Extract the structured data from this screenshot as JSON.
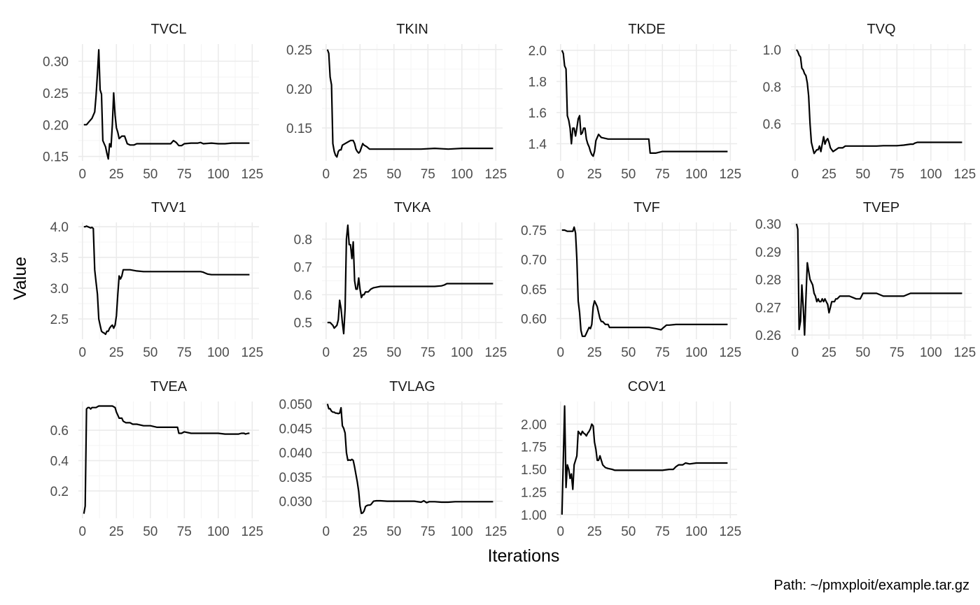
{
  "figure": {
    "ylabel": "Value",
    "xlabel": "Iterations",
    "caption": "Path: ~/pmxploit/example.tar.gz"
  },
  "chart_data": [
    {
      "type": "line",
      "title": "TVCL",
      "xlim": [
        -3,
        130
      ],
      "xticks": [
        0,
        25,
        50,
        75,
        100,
        125
      ],
      "ylim": [
        0.143,
        0.327
      ],
      "yticks": [
        0.15,
        0.2,
        0.25,
        0.3
      ],
      "ytick_labels": [
        "0.15",
        "0.20",
        "0.25",
        "0.30"
      ],
      "x": [
        1,
        3,
        5,
        7,
        9,
        10,
        11,
        12,
        13,
        14,
        15,
        17,
        18,
        19,
        20,
        21,
        22,
        23,
        24,
        25,
        26,
        27,
        29,
        31,
        33,
        35,
        38,
        40,
        45,
        50,
        55,
        60,
        65,
        67,
        69,
        71,
        73,
        75,
        80,
        85,
        87,
        89,
        95,
        100,
        105,
        110,
        115,
        120,
        123
      ],
      "y": [
        0.2,
        0.2,
        0.205,
        0.21,
        0.22,
        0.245,
        0.28,
        0.318,
        0.255,
        0.248,
        0.175,
        0.165,
        0.155,
        0.146,
        0.17,
        0.165,
        0.2,
        0.25,
        0.215,
        0.195,
        0.188,
        0.178,
        0.182,
        0.182,
        0.17,
        0.168,
        0.168,
        0.17,
        0.17,
        0.17,
        0.17,
        0.17,
        0.17,
        0.175,
        0.172,
        0.167,
        0.167,
        0.17,
        0.171,
        0.171,
        0.172,
        0.17,
        0.171,
        0.17,
        0.17,
        0.171,
        0.171,
        0.171,
        0.171
      ]
    },
    {
      "type": "line",
      "title": "TKIN",
      "xlim": [
        -3,
        130
      ],
      "xticks": [
        0,
        25,
        50,
        75,
        100,
        125
      ],
      "ylim": [
        0.108,
        0.257
      ],
      "yticks": [
        0.15,
        0.2,
        0.25
      ],
      "ytick_labels": [
        "0.15",
        "0.20",
        "0.25"
      ],
      "x": [
        1,
        2,
        3,
        4,
        5,
        6,
        7,
        8,
        9,
        10,
        11,
        12,
        14,
        16,
        18,
        20,
        21,
        22,
        23,
        24,
        25,
        27,
        28,
        30,
        32,
        35,
        40,
        50,
        60,
        70,
        80,
        90,
        100,
        110,
        120,
        123
      ],
      "y": [
        0.25,
        0.245,
        0.215,
        0.205,
        0.13,
        0.12,
        0.115,
        0.113,
        0.12,
        0.122,
        0.122,
        0.128,
        0.13,
        0.132,
        0.134,
        0.134,
        0.13,
        0.123,
        0.12,
        0.118,
        0.12,
        0.13,
        0.128,
        0.126,
        0.123,
        0.123,
        0.123,
        0.123,
        0.123,
        0.123,
        0.124,
        0.123,
        0.124,
        0.124,
        0.124,
        0.124
      ]
    },
    {
      "type": "line",
      "title": "TKDE",
      "xlim": [
        -3,
        130
      ],
      "xticks": [
        0,
        25,
        50,
        75,
        100,
        125
      ],
      "ylim": [
        1.29,
        2.04
      ],
      "yticks": [
        1.4,
        1.6,
        1.8,
        2.0
      ],
      "ytick_labels": [
        "1.4",
        "1.6",
        "1.8",
        "2.0"
      ],
      "x": [
        1,
        2,
        3,
        4,
        5,
        6,
        7,
        8,
        9,
        10,
        11,
        12,
        13,
        14,
        15,
        16,
        17,
        18,
        19,
        20,
        21,
        22,
        23,
        24,
        25,
        26,
        27,
        28,
        30,
        35,
        40,
        45,
        50,
        55,
        60,
        62,
        64,
        65,
        66,
        67,
        68,
        70,
        75,
        80,
        85,
        90,
        95,
        100,
        110,
        120,
        123
      ],
      "y": [
        2.0,
        1.98,
        1.9,
        1.88,
        1.58,
        1.55,
        1.5,
        1.4,
        1.5,
        1.5,
        1.45,
        1.5,
        1.56,
        1.58,
        1.46,
        1.47,
        1.5,
        1.5,
        1.43,
        1.4,
        1.38,
        1.35,
        1.33,
        1.32,
        1.35,
        1.42,
        1.44,
        1.46,
        1.44,
        1.43,
        1.43,
        1.43,
        1.43,
        1.43,
        1.43,
        1.43,
        1.43,
        1.43,
        1.34,
        1.34,
        1.34,
        1.34,
        1.35,
        1.35,
        1.35,
        1.35,
        1.35,
        1.35,
        1.35,
        1.35,
        1.35
      ]
    },
    {
      "type": "line",
      "title": "TVQ",
      "xlim": [
        -3,
        130
      ],
      "xticks": [
        0,
        25,
        50,
        75,
        100,
        125
      ],
      "ylim": [
        0.4,
        1.03
      ],
      "yticks": [
        0.6,
        0.8,
        1.0
      ],
      "ytick_labels": [
        "0.6",
        "0.8",
        "1.0"
      ],
      "x": [
        1,
        2,
        3,
        4,
        5,
        6,
        7,
        8,
        9,
        10,
        11,
        12,
        13,
        14,
        15,
        16,
        17,
        18,
        19,
        20,
        21,
        22,
        23,
        24,
        25,
        26,
        27,
        28,
        30,
        32,
        35,
        37,
        40,
        45,
        50,
        55,
        60,
        65,
        70,
        75,
        80,
        85,
        87,
        88,
        90,
        95,
        100,
        110,
        120,
        123
      ],
      "y": [
        1.0,
        0.99,
        0.97,
        0.96,
        0.9,
        0.89,
        0.87,
        0.86,
        0.82,
        0.75,
        0.6,
        0.5,
        0.47,
        0.44,
        0.45,
        0.46,
        0.46,
        0.48,
        0.45,
        0.49,
        0.53,
        0.49,
        0.51,
        0.52,
        0.5,
        0.47,
        0.46,
        0.45,
        0.46,
        0.47,
        0.47,
        0.48,
        0.48,
        0.48,
        0.48,
        0.48,
        0.48,
        0.482,
        0.482,
        0.482,
        0.485,
        0.49,
        0.49,
        0.495,
        0.5,
        0.5,
        0.5,
        0.5,
        0.5,
        0.5
      ]
    },
    {
      "type": "line",
      "title": "TVV1",
      "xlim": [
        -3,
        130
      ],
      "xticks": [
        0,
        25,
        50,
        75,
        100,
        125
      ],
      "ylim": [
        2.17,
        4.07
      ],
      "yticks": [
        2.5,
        3.0,
        3.5,
        4.0
      ],
      "ytick_labels": [
        "2.5",
        "3.0",
        "3.5",
        "4.0"
      ],
      "x": [
        1,
        2,
        3,
        4,
        5,
        6,
        7,
        8,
        9,
        10,
        11,
        12,
        13,
        14,
        15,
        16,
        17,
        18,
        19,
        20,
        21,
        22,
        23,
        24,
        25,
        26,
        27,
        28,
        29,
        30,
        31,
        32,
        35,
        40,
        45,
        50,
        60,
        70,
        80,
        87,
        89,
        90,
        92,
        95,
        100,
        110,
        120,
        123
      ],
      "y": [
        4.0,
        4.0,
        4.01,
        4.0,
        3.99,
        3.98,
        3.99,
        3.97,
        3.3,
        3.1,
        2.9,
        2.5,
        2.4,
        2.3,
        2.28,
        2.27,
        2.25,
        2.3,
        2.3,
        2.35,
        2.38,
        2.4,
        2.35,
        2.4,
        2.55,
        2.9,
        3.2,
        3.15,
        3.2,
        3.3,
        3.3,
        3.3,
        3.3,
        3.28,
        3.27,
        3.27,
        3.27,
        3.27,
        3.27,
        3.27,
        3.26,
        3.25,
        3.23,
        3.22,
        3.22,
        3.22,
        3.22,
        3.22
      ]
    },
    {
      "type": "line",
      "title": "TVKA",
      "xlim": [
        -3,
        130
      ],
      "xticks": [
        0,
        25,
        50,
        75,
        100,
        125
      ],
      "ylim": [
        0.44,
        0.86
      ],
      "yticks": [
        0.5,
        0.6,
        0.7,
        0.8
      ],
      "ytick_labels": [
        "0.5",
        "0.6",
        "0.7",
        "0.8"
      ],
      "x": [
        1,
        3,
        5,
        6,
        7,
        8,
        9,
        10,
        11,
        12,
        13,
        14,
        15,
        16,
        17,
        18,
        19,
        20,
        21,
        22,
        23,
        24,
        25,
        26,
        27,
        28,
        29,
        30,
        31,
        33,
        35,
        40,
        45,
        50,
        60,
        70,
        80,
        85,
        87,
        89,
        90,
        92,
        95,
        100,
        110,
        120,
        123
      ],
      "y": [
        0.5,
        0.5,
        0.49,
        0.48,
        0.485,
        0.49,
        0.51,
        0.58,
        0.55,
        0.5,
        0.46,
        0.55,
        0.8,
        0.85,
        0.78,
        0.78,
        0.73,
        0.79,
        0.65,
        0.62,
        0.62,
        0.66,
        0.62,
        0.59,
        0.6,
        0.6,
        0.61,
        0.61,
        0.61,
        0.62,
        0.625,
        0.63,
        0.63,
        0.63,
        0.63,
        0.63,
        0.63,
        0.632,
        0.635,
        0.64,
        0.64,
        0.64,
        0.64,
        0.64,
        0.64,
        0.64,
        0.64
      ]
    },
    {
      "type": "line",
      "title": "TVF",
      "xlim": [
        -3,
        130
      ],
      "xticks": [
        0,
        25,
        50,
        75,
        100,
        125
      ],
      "ylim": [
        0.565,
        0.763
      ],
      "yticks": [
        0.6,
        0.65,
        0.7,
        0.75
      ],
      "ytick_labels": [
        "0.60",
        "0.65",
        "0.70",
        "0.75"
      ],
      "x": [
        1,
        3,
        5,
        7,
        9,
        10,
        11,
        12,
        13,
        14,
        15,
        16,
        17,
        18,
        19,
        20,
        21,
        22,
        23,
        24,
        25,
        26,
        27,
        28,
        29,
        30,
        31,
        33,
        35,
        36,
        38,
        40,
        45,
        50,
        55,
        60,
        65,
        70,
        74,
        76,
        78,
        80,
        85,
        90,
        95,
        100,
        110,
        120,
        123
      ],
      "y": [
        0.75,
        0.75,
        0.748,
        0.748,
        0.748,
        0.755,
        0.745,
        0.7,
        0.63,
        0.61,
        0.58,
        0.57,
        0.57,
        0.57,
        0.575,
        0.58,
        0.585,
        0.583,
        0.59,
        0.62,
        0.63,
        0.625,
        0.62,
        0.61,
        0.6,
        0.595,
        0.595,
        0.59,
        0.59,
        0.585,
        0.585,
        0.585,
        0.585,
        0.585,
        0.585,
        0.585,
        0.585,
        0.583,
        0.581,
        0.585,
        0.589,
        0.589,
        0.59,
        0.59,
        0.59,
        0.59,
        0.59,
        0.59,
        0.59
      ]
    },
    {
      "type": "line",
      "title": "TVEP",
      "xlim": [
        -3,
        130
      ],
      "xticks": [
        0,
        25,
        50,
        75,
        100,
        125
      ],
      "ylim": [
        0.2585,
        0.3005
      ],
      "yticks": [
        0.26,
        0.27,
        0.28,
        0.29,
        0.3
      ],
      "ytick_labels": [
        "0.26",
        "0.27",
        "0.28",
        "0.29",
        "0.30"
      ],
      "x": [
        1,
        2,
        3,
        4,
        5,
        6,
        7,
        8,
        9,
        10,
        11,
        12,
        13,
        14,
        15,
        16,
        17,
        18,
        19,
        20,
        21,
        22,
        23,
        24,
        25,
        26,
        27,
        28,
        29,
        30,
        31,
        33,
        35,
        37,
        40,
        45,
        48,
        50,
        52,
        55,
        60,
        65,
        70,
        75,
        80,
        85,
        88,
        90,
        95,
        100,
        105,
        110,
        115,
        120,
        123
      ],
      "y": [
        0.3,
        0.298,
        0.262,
        0.265,
        0.278,
        0.27,
        0.26,
        0.273,
        0.286,
        0.283,
        0.28,
        0.279,
        0.278,
        0.275,
        0.274,
        0.272,
        0.273,
        0.272,
        0.272,
        0.273,
        0.272,
        0.273,
        0.272,
        0.271,
        0.268,
        0.27,
        0.272,
        0.272,
        0.272,
        0.273,
        0.273,
        0.274,
        0.274,
        0.274,
        0.274,
        0.273,
        0.273,
        0.275,
        0.275,
        0.275,
        0.275,
        0.274,
        0.274,
        0.274,
        0.274,
        0.275,
        0.275,
        0.275,
        0.275,
        0.275,
        0.275,
        0.275,
        0.275,
        0.275,
        0.275
      ]
    },
    {
      "type": "line",
      "title": "TVEA",
      "xlim": [
        -3,
        130
      ],
      "xticks": [
        0,
        25,
        50,
        75,
        100,
        125
      ],
      "ylim": [
        0.02,
        0.79
      ],
      "yticks": [
        0.2,
        0.4,
        0.6
      ],
      "ytick_labels": [
        "0.2",
        "0.4",
        "0.6"
      ],
      "x": [
        1,
        2,
        3,
        4,
        5,
        6,
        7,
        8,
        10,
        12,
        14,
        16,
        18,
        20,
        22,
        24,
        25,
        26,
        27,
        28,
        29,
        30,
        32,
        35,
        37,
        40,
        45,
        50,
        55,
        60,
        65,
        70,
        71,
        73,
        75,
        80,
        85,
        90,
        95,
        100,
        105,
        110,
        115,
        117,
        119,
        120,
        122,
        123
      ],
      "y": [
        0.05,
        0.1,
        0.74,
        0.75,
        0.75,
        0.74,
        0.75,
        0.75,
        0.75,
        0.76,
        0.76,
        0.76,
        0.76,
        0.76,
        0.76,
        0.75,
        0.72,
        0.7,
        0.68,
        0.68,
        0.68,
        0.66,
        0.65,
        0.65,
        0.64,
        0.64,
        0.63,
        0.63,
        0.62,
        0.62,
        0.62,
        0.62,
        0.58,
        0.58,
        0.59,
        0.58,
        0.58,
        0.58,
        0.58,
        0.58,
        0.575,
        0.575,
        0.575,
        0.58,
        0.58,
        0.575,
        0.58,
        0.58
      ]
    },
    {
      "type": "line",
      "title": "TVLAG",
      "xlim": [
        -3,
        130
      ],
      "xticks": [
        0,
        25,
        50,
        75,
        100,
        125
      ],
      "ylim": [
        0.0265,
        0.0505
      ],
      "yticks": [
        0.03,
        0.035,
        0.04,
        0.045,
        0.05
      ],
      "ytick_labels": [
        "0.030",
        "0.035",
        "0.040",
        "0.045",
        "0.050"
      ],
      "x": [
        1,
        2,
        3,
        4,
        5,
        6,
        7,
        8,
        9,
        10,
        11,
        12,
        13,
        14,
        15,
        16,
        17,
        18,
        19,
        20,
        21,
        22,
        23,
        24,
        25,
        26,
        27,
        28,
        29,
        30,
        31,
        32,
        33,
        35,
        37,
        40,
        45,
        50,
        55,
        60,
        65,
        70,
        72,
        74,
        76,
        80,
        85,
        90,
        95,
        100,
        110,
        120,
        123
      ],
      "y": [
        0.05,
        0.049,
        0.049,
        0.0485,
        0.0483,
        0.0483,
        0.0481,
        0.0481,
        0.048,
        0.0481,
        0.0492,
        0.0455,
        0.045,
        0.044,
        0.04,
        0.0384,
        0.0385,
        0.0384,
        0.0386,
        0.0384,
        0.037,
        0.0355,
        0.034,
        0.032,
        0.029,
        0.0275,
        0.0276,
        0.028,
        0.0289,
        0.0291,
        0.0292,
        0.0292,
        0.0293,
        0.03,
        0.0301,
        0.0301,
        0.03,
        0.03,
        0.03,
        0.03,
        0.03,
        0.0298,
        0.0301,
        0.0297,
        0.0299,
        0.0299,
        0.0298,
        0.0298,
        0.0299,
        0.0299,
        0.0299,
        0.0299,
        0.0299
      ]
    },
    {
      "type": "line",
      "title": "COV1",
      "xlim": [
        -3,
        130
      ],
      "xticks": [
        0,
        25,
        50,
        75,
        100,
        125
      ],
      "ylim": [
        0.96,
        2.25
      ],
      "yticks": [
        1.0,
        1.25,
        1.5,
        1.75,
        2.0
      ],
      "ytick_labels": [
        "1.00",
        "1.25",
        "1.50",
        "1.75",
        "2.00"
      ],
      "x": [
        1,
        2,
        3,
        4,
        5,
        6,
        7,
        8,
        9,
        10,
        11,
        12,
        13,
        14,
        15,
        16,
        17,
        18,
        19,
        20,
        21,
        22,
        23,
        24,
        25,
        26,
        27,
        28,
        29,
        30,
        31,
        33,
        35,
        38,
        40,
        45,
        50,
        55,
        60,
        65,
        70,
        75,
        80,
        83,
        85,
        87,
        90,
        92,
        95,
        100,
        110,
        120,
        123
      ],
      "y": [
        1.0,
        1.6,
        2.2,
        1.3,
        1.55,
        1.5,
        1.4,
        1.45,
        1.28,
        1.55,
        1.6,
        1.65,
        1.92,
        1.9,
        1.88,
        1.92,
        1.9,
        1.89,
        1.87,
        1.9,
        1.92,
        1.95,
        2.0,
        1.98,
        1.8,
        1.72,
        1.6,
        1.6,
        1.65,
        1.6,
        1.55,
        1.52,
        1.51,
        1.5,
        1.49,
        1.49,
        1.49,
        1.49,
        1.49,
        1.49,
        1.49,
        1.49,
        1.5,
        1.5,
        1.53,
        1.55,
        1.55,
        1.57,
        1.56,
        1.57,
        1.57,
        1.57,
        1.57
      ]
    }
  ]
}
